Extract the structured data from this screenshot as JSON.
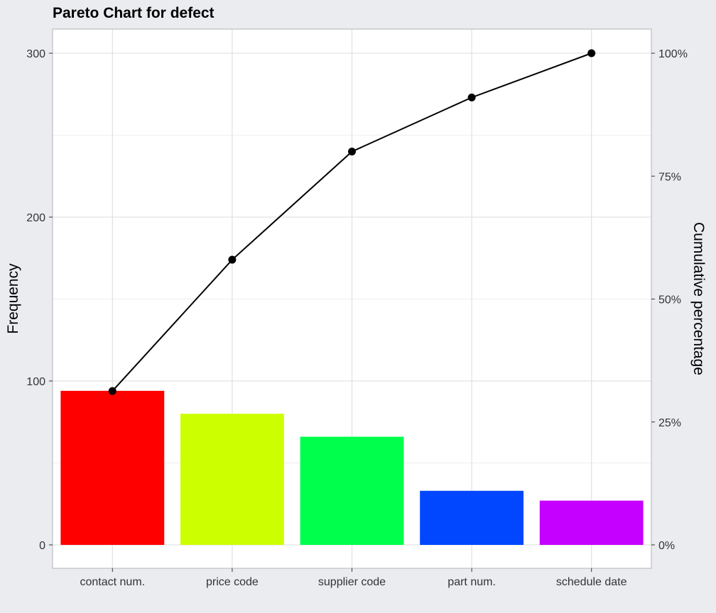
{
  "chart_data": {
    "type": "bar",
    "title": "Pareto Chart for defect",
    "xlabel": "",
    "ylabel": "Frequency",
    "y2label": "Cumulative percentage",
    "categories": [
      "contact num.",
      "price code",
      "supplier code",
      "part num.",
      "schedule date"
    ],
    "series": [
      {
        "type": "bar",
        "values": [
          94,
          80,
          66,
          33,
          27
        ]
      },
      {
        "type": "line",
        "axis": "secondary",
        "values": [
          31.3,
          58.0,
          80.0,
          91.0,
          100.0
        ]
      }
    ],
    "ylim": [
      0,
      300
    ],
    "yticks": [
      0,
      100,
      200,
      300
    ],
    "y2lim": [
      0,
      100
    ],
    "y2ticks": [
      "0%",
      "25%",
      "50%",
      "75%",
      "100%"
    ],
    "bar_colors": [
      "#FF0000",
      "#CCFF00",
      "#00FF4D",
      "#0047FF",
      "#C600FF"
    ],
    "line_color": "#000000",
    "grid": true,
    "legend": "none",
    "colors": {
      "page_background": "#EBECF0",
      "panel_background": "#FFFFFF",
      "grid": "#DEDEDE",
      "panel_border": "#B3B3B3"
    }
  }
}
